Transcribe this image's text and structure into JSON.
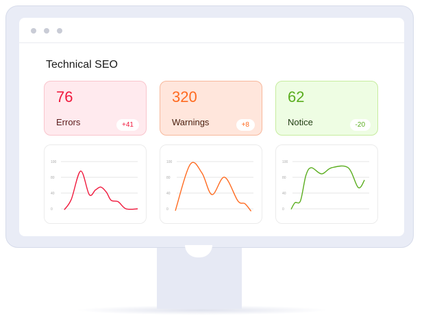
{
  "dashboard": {
    "title": "Technical SEO"
  },
  "cards": [
    {
      "value": "76",
      "label": "Errors",
      "delta": "+41",
      "color": "#f0183c",
      "bg": "#ffeaee",
      "border": "#f9c4cc",
      "label_color": "#5a1a1a"
    },
    {
      "value": "320",
      "label": "Warnings",
      "delta": "+8",
      "color": "#ff6a1f",
      "bg": "#ffe6dc",
      "border": "#f7b89c",
      "label_color": "#4a2010"
    },
    {
      "value": "62",
      "label": "Notice",
      "delta": "-20",
      "color": "#5aad1e",
      "bg": "#eefde3",
      "border": "#c6ec9e",
      "label_color": "#1e3a10"
    }
  ],
  "chart_data": [
    {
      "type": "line",
      "y_tick_labels": [
        "100",
        "80",
        "40",
        "0"
      ],
      "grid": true,
      "color": "#f0183c",
      "x": [
        6,
        15,
        27,
        38,
        46,
        53,
        60,
        66,
        75,
        85,
        100
      ],
      "y": [
        -2,
        20,
        80,
        30,
        40,
        46,
        35,
        18,
        15,
        0,
        0
      ]
    },
    {
      "type": "line",
      "y_tick_labels": [
        "100",
        "80",
        "40",
        "0"
      ],
      "grid": true,
      "color": "#ff6a1f",
      "x": [
        0,
        19,
        34,
        47,
        63,
        80,
        89,
        97
      ],
      "y": [
        -4,
        94,
        76,
        30,
        67,
        17,
        11,
        -5
      ]
    },
    {
      "type": "line",
      "y_tick_labels": [
        "100",
        "80",
        "40",
        "0"
      ],
      "grid": true,
      "color": "#5aad1e",
      "x": [
        0,
        5,
        12,
        19,
        26,
        39,
        52,
        73,
        86,
        94
      ],
      "y": [
        -1,
        13,
        17,
        71,
        87,
        74,
        87,
        87,
        45,
        61
      ]
    }
  ]
}
